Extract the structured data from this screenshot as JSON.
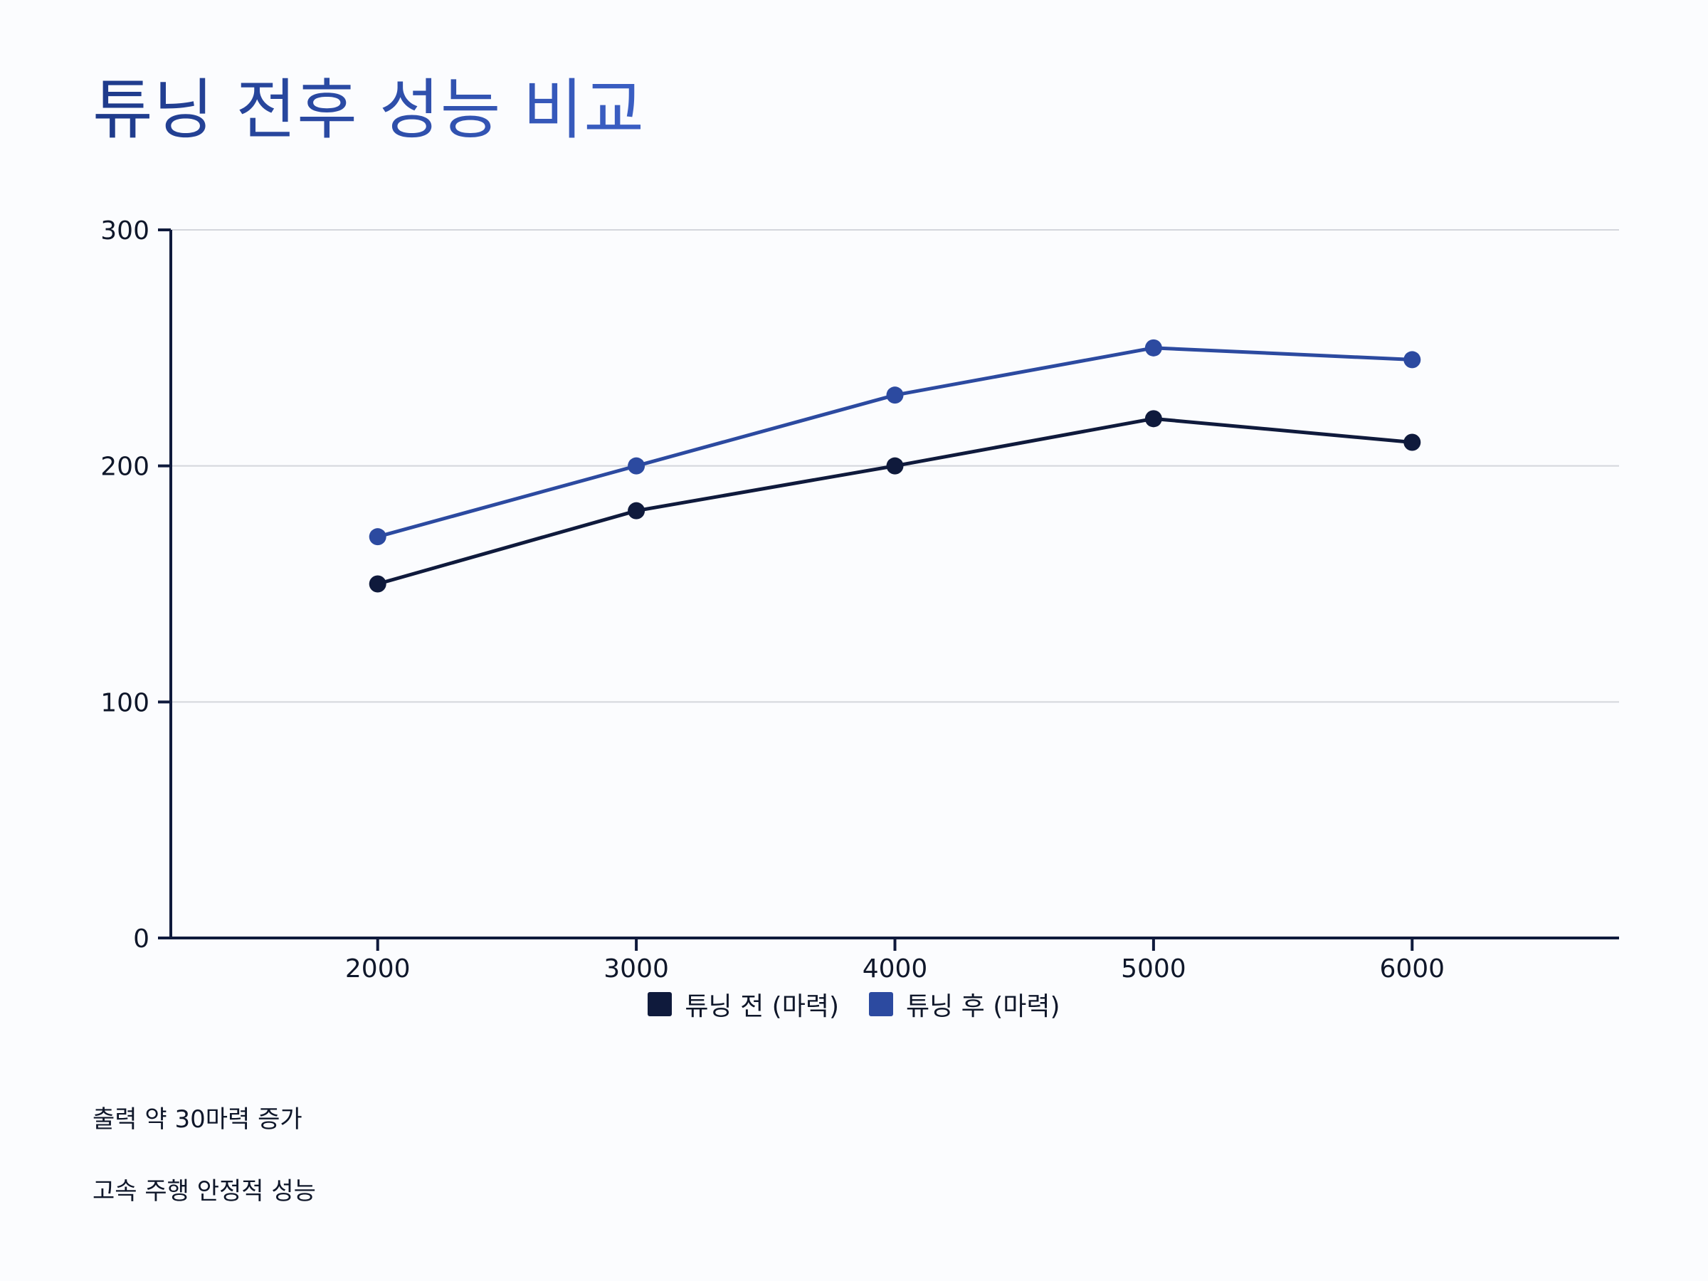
{
  "title": "튜닝 전후 성능 비교",
  "notes": [
    "출력 약 30마력 증가",
    "고속 주행 안정적 성능"
  ],
  "chart_data": {
    "type": "line",
    "title": "튜닝 전후 성능 비교",
    "xlabel": "",
    "ylabel": "",
    "x": [
      2000,
      3000,
      4000,
      5000,
      6000
    ],
    "x_tick_labels": [
      "2000",
      "3000",
      "4000",
      "5000",
      "6000"
    ],
    "xlim": [
      1200,
      6800
    ],
    "ylim": [
      0,
      300
    ],
    "y_ticks": [
      0,
      100,
      200,
      300
    ],
    "y_tick_labels": [
      "0",
      "100",
      "200",
      "300"
    ],
    "grid": true,
    "legend_position": "bottom-center",
    "series": [
      {
        "name": "튜닝 전 (마력)",
        "color": "#0f1a3c",
        "values": [
          150,
          181,
          200,
          220,
          210
        ]
      },
      {
        "name": "튜닝 후 (마력)",
        "color": "#2c4aa0",
        "values": [
          170,
          200,
          230,
          250,
          245
        ]
      }
    ]
  },
  "colors": {
    "axis": "#0f1a3c",
    "grid": "#d4d6dc",
    "title_gradient_start": "#1e3a8a",
    "title_gradient_end": "#3b5fc4"
  }
}
